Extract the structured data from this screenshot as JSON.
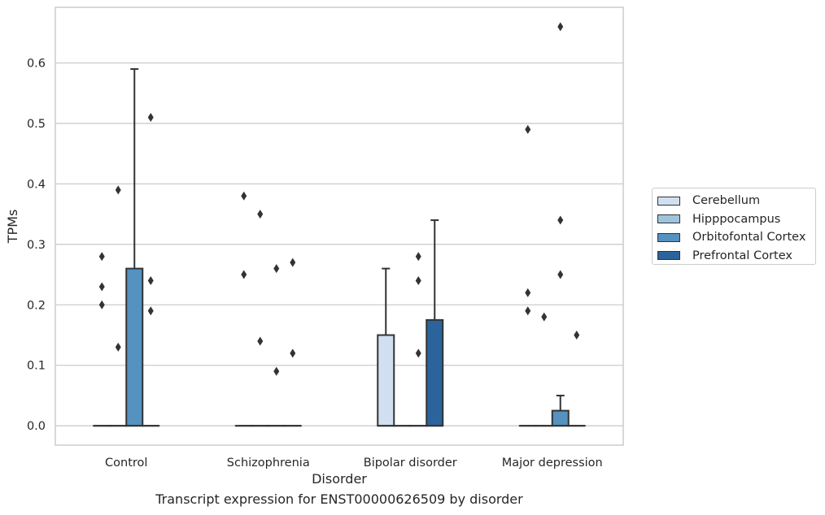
{
  "caption": "Transcript expression for ENST00000626509 by disorder",
  "chart_data": {
    "type": "box",
    "xlabel": "Disorder",
    "ylabel": "TPMs",
    "ylim": [
      -0.032,
      0.692
    ],
    "yticks": [
      0.0,
      0.1,
      0.2,
      0.3,
      0.4,
      0.5,
      0.6
    ],
    "ytick_labels": [
      "0.0",
      "0.1",
      "0.2",
      "0.3",
      "0.4",
      "0.5",
      "0.6"
    ],
    "categories": [
      "Control",
      "Schizophrenia",
      "Bipolar disorder",
      "Major depression"
    ],
    "grid": "horizontal",
    "legend_position": "right",
    "series": [
      {
        "name": "Cerebellum",
        "color": "#d0e0f0",
        "boxes": [
          {
            "q1": 0,
            "median": 0,
            "q3": 0,
            "whisker_low": 0,
            "whisker_high": 0,
            "outliers": [
              0.28,
              0.23,
              0.2
            ]
          },
          {
            "q1": 0,
            "median": 0,
            "q3": 0,
            "whisker_low": 0,
            "whisker_high": 0,
            "outliers": [
              0.38,
              0.25
            ]
          },
          {
            "q1": 0,
            "median": 0,
            "q3": 0.15,
            "whisker_low": 0,
            "whisker_high": 0.26,
            "outliers": []
          },
          {
            "q1": 0,
            "median": 0,
            "q3": 0,
            "whisker_low": 0,
            "whisker_high": 0,
            "outliers": [
              0.49,
              0.22,
              0.19
            ]
          }
        ]
      },
      {
        "name": "Hipppocampus",
        "color": "#9ec4dc",
        "boxes": [
          {
            "q1": 0,
            "median": 0,
            "q3": 0,
            "whisker_low": 0,
            "whisker_high": 0,
            "outliers": [
              0.39,
              0.13
            ]
          },
          {
            "q1": 0,
            "median": 0,
            "q3": 0,
            "whisker_low": 0,
            "whisker_high": 0,
            "outliers": [
              0.35,
              0.14
            ]
          },
          {
            "q1": 0,
            "median": 0,
            "q3": 0,
            "whisker_low": 0,
            "whisker_high": 0,
            "outliers": []
          },
          {
            "q1": 0,
            "median": 0,
            "q3": 0,
            "whisker_low": 0,
            "whisker_high": 0,
            "outliers": [
              0.18
            ]
          }
        ]
      },
      {
        "name": "Orbitofontal Cortex",
        "color": "#5592c0",
        "boxes": [
          {
            "q1": 0,
            "median": 0,
            "q3": 0.26,
            "whisker_low": 0,
            "whisker_high": 0.59,
            "outliers": []
          },
          {
            "q1": 0,
            "median": 0,
            "q3": 0,
            "whisker_low": 0,
            "whisker_high": 0,
            "outliers": [
              0.26,
              0.09
            ]
          },
          {
            "q1": 0,
            "median": 0,
            "q3": 0,
            "whisker_low": 0,
            "whisker_high": 0,
            "outliers": [
              0.28,
              0.24,
              0.12
            ]
          },
          {
            "q1": 0,
            "median": 0,
            "q3": 0.025,
            "whisker_low": 0,
            "whisker_high": 0.05,
            "outliers": [
              0.66,
              0.34,
              0.25
            ]
          }
        ]
      },
      {
        "name": "Prefrontal Cortex",
        "color": "#2b649c",
        "boxes": [
          {
            "q1": 0,
            "median": 0,
            "q3": 0,
            "whisker_low": 0,
            "whisker_high": 0,
            "outliers": [
              0.51,
              0.24,
              0.19
            ]
          },
          {
            "q1": 0,
            "median": 0,
            "q3": 0,
            "whisker_low": 0,
            "whisker_high": 0,
            "outliers": [
              0.27,
              0.12
            ]
          },
          {
            "q1": 0,
            "median": 0,
            "q3": 0.175,
            "whisker_low": 0,
            "whisker_high": 0.34,
            "outliers": []
          },
          {
            "q1": 0,
            "median": 0,
            "q3": 0,
            "whisker_low": 0,
            "whisker_high": 0,
            "outliers": [
              0.15
            ]
          }
        ]
      }
    ]
  }
}
